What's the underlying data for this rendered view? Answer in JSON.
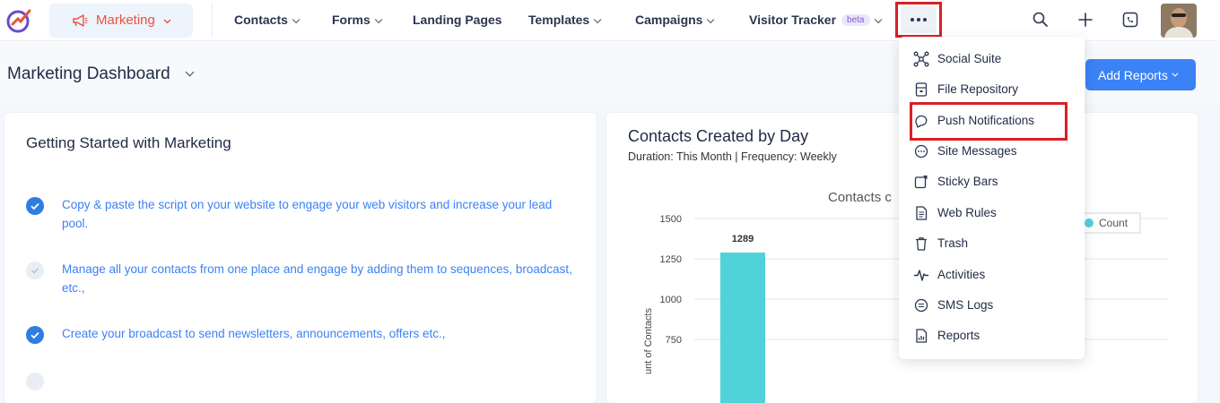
{
  "nav": {
    "module": "Marketing",
    "items": [
      {
        "label": "Contacts",
        "has_dropdown": true
      },
      {
        "label": "Forms",
        "has_dropdown": true
      },
      {
        "label": "Landing Pages",
        "has_dropdown": false
      },
      {
        "label": "Templates",
        "has_dropdown": true
      },
      {
        "label": "Campaigns",
        "has_dropdown": true
      },
      {
        "label": "Visitor Tracker",
        "has_dropdown": true,
        "badge": "beta"
      }
    ],
    "icons": [
      "more-icon",
      "search-icon",
      "plus-icon",
      "phone-icon"
    ]
  },
  "dashboard": {
    "title": "Marketing Dashboard",
    "add_reports": "Add Reports"
  },
  "getting_started": {
    "title": "Getting Started with Marketing",
    "tasks": [
      {
        "text": "Copy & paste the script on your website to engage your web visitors and increase your lead pool.",
        "status": "done"
      },
      {
        "text": "Manage all your contacts from one place and engage by adding them to sequences, broadcast, etc.,",
        "status": "pending"
      },
      {
        "text": "Create your broadcast to send newsletters, announcements, offers etc.,",
        "status": "done"
      }
    ]
  },
  "chart_panel": {
    "title": "Contacts Created by Day",
    "subtitle": "Duration: This Month | Frequency: Weekly",
    "inner_title_visible": "Contacts c",
    "legend": "Count"
  },
  "chart_data": {
    "type": "bar",
    "title": "Contacts c",
    "ylabel": "unt of Contacts",
    "yticks": [
      750,
      1000,
      1250,
      1500
    ],
    "ylim": [
      500,
      1500
    ],
    "series": [
      {
        "name": "Count",
        "values": [
          1289
        ]
      }
    ],
    "data_labels": [
      "1289"
    ],
    "legend": "top-right",
    "color": "#4fd3d9"
  },
  "more_menu": {
    "items": [
      {
        "label": "Social Suite",
        "icon": "share-nodes-icon"
      },
      {
        "label": "File Repository",
        "icon": "file-repository-icon"
      },
      {
        "label": "Push Notifications",
        "icon": "push-notification-icon"
      },
      {
        "label": "Site Messages",
        "icon": "chat-bubble-icon"
      },
      {
        "label": "Sticky Bars",
        "icon": "sticky-note-icon"
      },
      {
        "label": "Web Rules",
        "icon": "document-icon"
      },
      {
        "label": "Trash",
        "icon": "trash-icon"
      },
      {
        "label": "Activities",
        "icon": "activity-icon"
      },
      {
        "label": "SMS Logs",
        "icon": "sms-icon"
      },
      {
        "label": "Reports",
        "icon": "report-icon"
      }
    ],
    "highlighted": "Push Notifications"
  },
  "colors": {
    "accent": "#3b82f6",
    "brand_red": "#e8533b",
    "highlight": "#d81f26",
    "bar": "#4fd3d9"
  }
}
